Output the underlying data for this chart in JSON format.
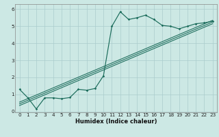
{
  "xlabel": "Humidex (Indice chaleur)",
  "bg_color": "#cce8e4",
  "line_color": "#1a6b5a",
  "grid_color": "#aacccc",
  "xlim": [
    -0.5,
    23.5
  ],
  "ylim": [
    -0.05,
    6.3
  ],
  "xticks": [
    0,
    1,
    2,
    3,
    4,
    5,
    6,
    7,
    8,
    9,
    10,
    11,
    12,
    13,
    14,
    15,
    16,
    17,
    18,
    19,
    20,
    21,
    22,
    23
  ],
  "yticks": [
    0,
    1,
    2,
    3,
    4,
    5,
    6
  ],
  "curve1_x": [
    0,
    1,
    2,
    3,
    4,
    5,
    6,
    7,
    8,
    9,
    10,
    11,
    12,
    13,
    14,
    15,
    16,
    17,
    18,
    19,
    20,
    21,
    22,
    23
  ],
  "curve1_y": [
    1.3,
    0.8,
    0.15,
    0.8,
    0.8,
    0.75,
    0.82,
    1.3,
    1.25,
    1.35,
    2.1,
    5.0,
    5.85,
    5.4,
    5.5,
    5.65,
    5.4,
    5.05,
    5.0,
    4.85,
    5.0,
    5.15,
    5.2,
    5.3
  ],
  "line1_x": [
    0,
    23
  ],
  "line1_y": [
    0.55,
    5.35
  ],
  "line2_x": [
    0,
    23
  ],
  "line2_y": [
    0.45,
    5.25
  ],
  "line3_x": [
    0,
    23
  ],
  "line3_y": [
    0.35,
    5.15
  ],
  "xlabel_fontsize": 6.0,
  "tick_fontsize": 5.2
}
